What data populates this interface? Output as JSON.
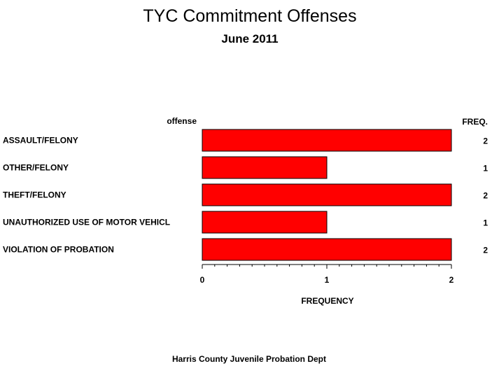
{
  "chart_data": {
    "type": "bar",
    "orientation": "horizontal",
    "title": "TYC Commitment Offenses",
    "subtitle": "June 2011",
    "category_header": "offense",
    "freq_header": "FREQ.",
    "xlabel": "FREQUENCY",
    "categories": [
      "ASSAULT/FELONY",
      "OTHER/FELONY",
      "THEFT/FELONY",
      "UNAUTHORIZED USE OF MOTOR VEHICL",
      "VIOLATION OF PROBATION"
    ],
    "values": [
      2,
      1,
      2,
      1,
      2
    ],
    "freq_labels": [
      "2",
      "1",
      "2",
      "1",
      "2"
    ],
    "xlim": [
      0,
      2
    ],
    "major_ticks": [
      0,
      1,
      2
    ],
    "major_tick_labels": [
      "0",
      "1",
      "2"
    ],
    "minor_tick_step": 0.1,
    "grid": false,
    "bar_color": "#ff0000",
    "bar_outline_color": "#000000",
    "footnote": "Harris County Juvenile Probation Dept"
  }
}
